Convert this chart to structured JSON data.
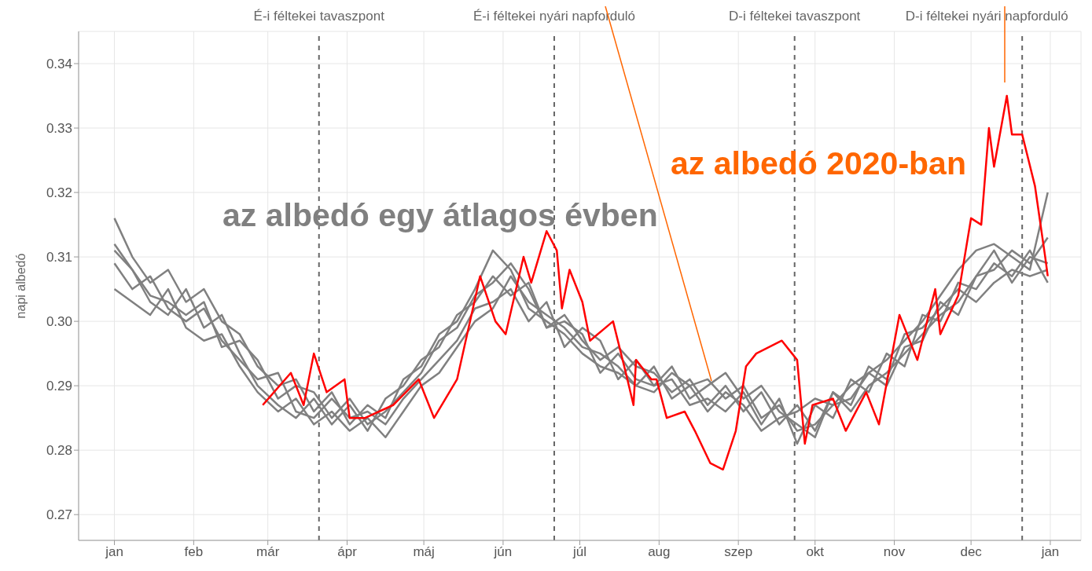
{
  "chart_data": {
    "type": "line",
    "ylabel": "napi albedó",
    "xlim": [
      "2019-12-18",
      "2021-01-13"
    ],
    "ylim": [
      0.266,
      0.345
    ],
    "xticks": [
      {
        "value": "2020-01-01",
        "label": "jan"
      },
      {
        "value": "2020-02-01",
        "label": "feb"
      },
      {
        "value": "2020-03-01",
        "label": "már"
      },
      {
        "value": "2020-04-01",
        "label": "ápr"
      },
      {
        "value": "2020-05-01",
        "label": "máj"
      },
      {
        "value": "2020-06-01",
        "label": "jún"
      },
      {
        "value": "2020-07-01",
        "label": "júl"
      },
      {
        "value": "2020-08-01",
        "label": "aug"
      },
      {
        "value": "2020-09-01",
        "label": "szep"
      },
      {
        "value": "2020-10-01",
        "label": "okt"
      },
      {
        "value": "2020-11-01",
        "label": "nov"
      },
      {
        "value": "2020-12-01",
        "label": "dec"
      },
      {
        "value": "2021-01-01",
        "label": "jan"
      }
    ],
    "yticks": [
      {
        "value": 0.27,
        "label": "0.27"
      },
      {
        "value": 0.28,
        "label": "0.28"
      },
      {
        "value": 0.29,
        "label": "0.29"
      },
      {
        "value": 0.3,
        "label": "0.30"
      },
      {
        "value": 0.31,
        "label": "0.31"
      },
      {
        "value": 0.32,
        "label": "0.32"
      },
      {
        "value": 0.33,
        "label": "0.33"
      },
      {
        "value": 0.34,
        "label": "0.34"
      }
    ],
    "grid": true,
    "marker": "none",
    "line_style": "solid",
    "x": [
      "2020-01-01",
      "2020-01-08",
      "2020-01-15",
      "2020-01-22",
      "2020-01-29",
      "2020-02-05",
      "2020-02-12",
      "2020-02-19",
      "2020-02-26",
      "2020-03-05",
      "2020-03-12",
      "2020-03-19",
      "2020-03-26",
      "2020-04-02",
      "2020-04-09",
      "2020-04-16",
      "2020-04-23",
      "2020-04-30",
      "2020-05-07",
      "2020-05-14",
      "2020-05-21",
      "2020-05-28",
      "2020-06-04",
      "2020-06-11",
      "2020-06-18",
      "2020-06-25",
      "2020-07-02",
      "2020-07-09",
      "2020-07-16",
      "2020-07-23",
      "2020-07-30",
      "2020-08-06",
      "2020-08-13",
      "2020-08-20",
      "2020-08-27",
      "2020-09-03",
      "2020-09-10",
      "2020-09-17",
      "2020-09-24",
      "2020-10-01",
      "2020-10-08",
      "2020-10-15",
      "2020-10-22",
      "2020-10-29",
      "2020-11-05",
      "2020-11-12",
      "2020-11-19",
      "2020-11-26",
      "2020-12-03",
      "2020-12-10",
      "2020-12-17",
      "2020-12-24",
      "2020-12-31"
    ],
    "series": [
      {
        "color": "#808080",
        "values": [
          0.316,
          0.31,
          0.306,
          0.308,
          0.303,
          0.305,
          0.3,
          0.298,
          0.293,
          0.29,
          0.291,
          0.286,
          0.289,
          0.284,
          0.287,
          0.285,
          0.291,
          0.293,
          0.298,
          0.3,
          0.305,
          0.311,
          0.308,
          0.302,
          0.3,
          0.298,
          0.295,
          0.293,
          0.292,
          0.29,
          0.289,
          0.292,
          0.29,
          0.291,
          0.288,
          0.29,
          0.285,
          0.287,
          0.283,
          0.284,
          0.287,
          0.288,
          0.292,
          0.294,
          0.297,
          0.3,
          0.304,
          0.308,
          0.311,
          0.312,
          0.31,
          0.308,
          0.32
        ]
      },
      {
        "color": "#808080",
        "values": [
          0.312,
          0.308,
          0.303,
          0.301,
          0.305,
          0.299,
          0.301,
          0.295,
          0.29,
          0.287,
          0.285,
          0.288,
          0.284,
          0.287,
          0.283,
          0.288,
          0.29,
          0.294,
          0.296,
          0.301,
          0.303,
          0.307,
          0.304,
          0.306,
          0.299,
          0.301,
          0.297,
          0.294,
          0.296,
          0.293,
          0.292,
          0.289,
          0.291,
          0.287,
          0.29,
          0.286,
          0.289,
          0.284,
          0.287,
          0.283,
          0.289,
          0.286,
          0.29,
          0.292,
          0.295,
          0.298,
          0.301,
          0.303,
          0.307,
          0.308,
          0.311,
          0.309,
          0.313
        ]
      },
      {
        "color": "#808080",
        "values": [
          0.309,
          0.305,
          0.307,
          0.302,
          0.3,
          0.302,
          0.297,
          0.294,
          0.291,
          0.292,
          0.286,
          0.285,
          0.288,
          0.285,
          0.286,
          0.284,
          0.288,
          0.291,
          0.294,
          0.297,
          0.302,
          0.303,
          0.305,
          0.3,
          0.303,
          0.296,
          0.299,
          0.297,
          0.291,
          0.294,
          0.29,
          0.291,
          0.287,
          0.288,
          0.286,
          0.289,
          0.284,
          0.288,
          0.281,
          0.287,
          0.285,
          0.291,
          0.289,
          0.295,
          0.293,
          0.301,
          0.3,
          0.306,
          0.305,
          0.309,
          0.307,
          0.311,
          0.306
        ]
      },
      {
        "color": "#808080",
        "values": [
          0.305,
          0.303,
          0.301,
          0.305,
          0.299,
          0.297,
          0.298,
          0.293,
          0.289,
          0.286,
          0.288,
          0.284,
          0.286,
          0.283,
          0.285,
          0.282,
          0.286,
          0.29,
          0.292,
          0.296,
          0.3,
          0.302,
          0.307,
          0.303,
          0.301,
          0.299,
          0.296,
          0.295,
          0.293,
          0.29,
          0.293,
          0.288,
          0.29,
          0.286,
          0.289,
          0.287,
          0.283,
          0.285,
          0.286,
          0.288,
          0.287,
          0.29,
          0.292,
          0.29,
          0.296,
          0.297,
          0.303,
          0.301,
          0.307,
          0.311,
          0.306,
          0.31,
          0.309
        ]
      },
      {
        "color": "#808080",
        "values": [
          0.311,
          0.308,
          0.304,
          0.303,
          0.301,
          0.303,
          0.296,
          0.297,
          0.294,
          0.288,
          0.29,
          0.289,
          0.285,
          0.288,
          0.284,
          0.286,
          0.289,
          0.292,
          0.297,
          0.299,
          0.304,
          0.306,
          0.309,
          0.305,
          0.299,
          0.3,
          0.298,
          0.292,
          0.295,
          0.291,
          0.29,
          0.293,
          0.288,
          0.29,
          0.292,
          0.288,
          0.29,
          0.286,
          0.284,
          0.282,
          0.289,
          0.287,
          0.293,
          0.291,
          0.298,
          0.299,
          0.302,
          0.305,
          0.303,
          0.306,
          0.308,
          0.307,
          0.308
        ]
      },
      {
        "color": "#ff0000",
        "x": [
          "2020-02-28",
          "2020-03-10",
          "2020-03-15",
          "2020-03-19",
          "2020-03-24",
          "2020-03-31",
          "2020-04-02",
          "2020-04-08",
          "2020-04-19",
          "2020-04-29",
          "2020-05-05",
          "2020-05-14",
          "2020-05-23",
          "2020-05-29",
          "2020-06-02",
          "2020-06-09",
          "2020-06-12",
          "2020-06-18",
          "2020-06-22",
          "2020-06-24",
          "2020-06-27",
          "2020-07-02",
          "2020-07-05",
          "2020-07-14",
          "2020-07-19",
          "2020-07-22",
          "2020-07-23",
          "2020-07-29",
          "2020-07-31",
          "2020-08-04",
          "2020-08-11",
          "2020-08-15",
          "2020-08-21",
          "2020-08-26",
          "2020-08-31",
          "2020-09-04",
          "2020-09-08",
          "2020-09-18",
          "2020-09-22",
          "2020-09-24",
          "2020-09-27",
          "2020-09-30",
          "2020-10-08",
          "2020-10-13",
          "2020-10-21",
          "2020-10-26",
          "2020-11-03",
          "2020-11-10",
          "2020-11-17",
          "2020-11-19",
          "2020-11-26",
          "2020-12-01",
          "2020-12-05",
          "2020-12-08",
          "2020-12-10",
          "2020-12-15",
          "2020-12-17",
          "2020-12-21",
          "2020-12-26",
          "2020-12-30",
          "2020-12-31"
        ],
        "values": [
          0.287,
          0.292,
          0.287,
          0.295,
          0.289,
          0.291,
          0.285,
          0.285,
          0.287,
          0.291,
          0.285,
          0.291,
          0.307,
          0.3,
          0.298,
          0.31,
          0.306,
          0.314,
          0.311,
          0.302,
          0.308,
          0.303,
          0.297,
          0.3,
          0.292,
          0.287,
          0.294,
          0.291,
          0.291,
          0.285,
          0.286,
          0.283,
          0.278,
          0.277,
          0.283,
          0.293,
          0.295,
          0.297,
          0.295,
          0.294,
          0.281,
          0.287,
          0.288,
          0.283,
          0.289,
          0.284,
          0.301,
          0.294,
          0.305,
          0.298,
          0.304,
          0.316,
          0.315,
          0.33,
          0.324,
          0.335,
          0.329,
          0.329,
          0.321,
          0.31,
          0.307
        ]
      }
    ],
    "ref_lines": [
      {
        "axis": "x",
        "value": "2020-03-21",
        "label": "É-i féltekei tavaszpont",
        "color": "#666666",
        "line_style": "dashed"
      },
      {
        "axis": "x",
        "value": "2020-06-21",
        "label": "É-i féltekei nyári napforduló",
        "color": "#666666",
        "line_style": "dashed"
      },
      {
        "axis": "x",
        "value": "2020-09-23",
        "label": "D-i féltekei tavaszpont",
        "color": "#666666",
        "line_style": "dashed"
      },
      {
        "axis": "x",
        "value": "2020-12-21",
        "label": "D-i féltekei nyári napforduló",
        "color": "#666666",
        "line_style": "dashed"
      }
    ],
    "annotations": [
      "az albedó egy átlagos évben",
      "az albedó 2020-ban"
    ]
  }
}
